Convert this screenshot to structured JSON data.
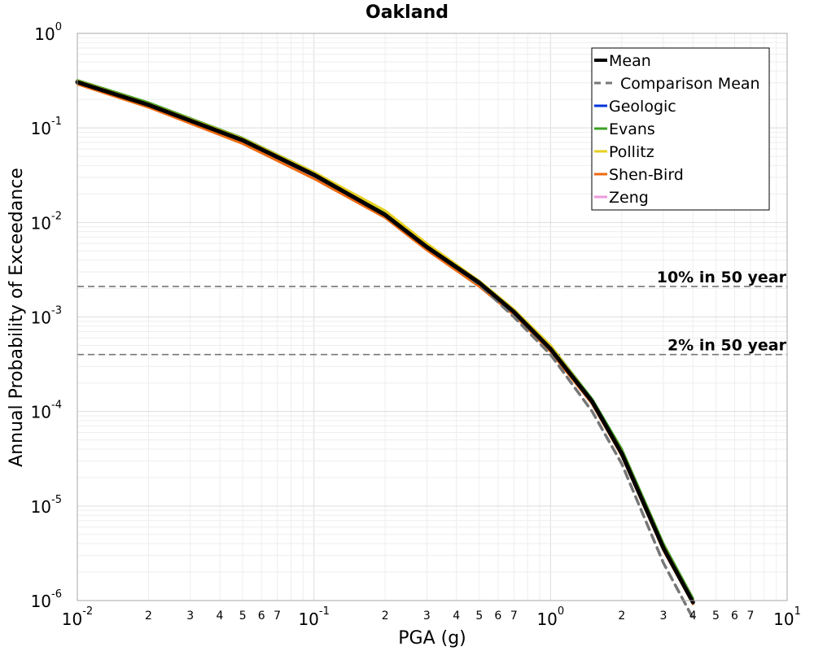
{
  "chart_data": {
    "type": "line",
    "title": "Oakland",
    "xlabel": "PGA (g)",
    "ylabel": "Annual Probability of Exceedance",
    "xscale": "log",
    "yscale": "log",
    "xlim": [
      0.01,
      10
    ],
    "ylim": [
      1e-06,
      1
    ],
    "grid": true,
    "legend_position": "top-right",
    "x_decade_labels": [
      {
        "value": 0.01,
        "base": "10",
        "exp": "-2"
      },
      {
        "value": 0.1,
        "base": "10",
        "exp": "-1"
      },
      {
        "value": 1,
        "base": "10",
        "exp": "0"
      },
      {
        "value": 10,
        "base": "10",
        "exp": "1"
      }
    ],
    "y_decade_labels": [
      {
        "value": 1,
        "base": "10",
        "exp": "0"
      },
      {
        "value": 0.1,
        "base": "10",
        "exp": "-1"
      },
      {
        "value": 0.01,
        "base": "10",
        "exp": "-2"
      },
      {
        "value": 0.001,
        "base": "10",
        "exp": "-3"
      },
      {
        "value": 0.0001,
        "base": "10",
        "exp": "-4"
      },
      {
        "value": 1e-05,
        "base": "10",
        "exp": "-5"
      },
      {
        "value": 1e-06,
        "base": "10",
        "exp": "-6"
      }
    ],
    "x_minor_labels": [
      "2",
      "3",
      "4",
      "5",
      "6",
      "7"
    ],
    "reference_lines": [
      {
        "label": "10% in 50 year",
        "y": 0.0021
      },
      {
        "label": "2% in 50 year",
        "y": 0.0004
      }
    ],
    "series": [
      {
        "name": "Geologic",
        "color": "#0033dd",
        "dash": "",
        "x": [
          0.01,
          0.02,
          0.05,
          0.1,
          0.2,
          0.3,
          0.5,
          0.7,
          1.0,
          1.5,
          2.0,
          3.0,
          4.0
        ],
        "y": [
          0.3,
          0.17,
          0.072,
          0.031,
          0.0115,
          0.0053,
          0.0022,
          0.0011,
          0.00045,
          0.000125,
          3.5e-05,
          3.5e-06,
          9.5e-07
        ]
      },
      {
        "name": "Evans",
        "color": "#3aa022",
        "dash": "",
        "x": [
          0.01,
          0.02,
          0.05,
          0.1,
          0.2,
          0.3,
          0.5,
          0.7,
          1.0,
          1.5,
          2.0,
          3.0,
          4.0
        ],
        "y": [
          0.32,
          0.185,
          0.078,
          0.034,
          0.013,
          0.0058,
          0.0024,
          0.0012,
          0.0005,
          0.000135,
          4e-05,
          4e-06,
          1.05e-06
        ]
      },
      {
        "name": "Pollitz",
        "color": "#e8d020",
        "dash": "",
        "x": [
          0.01,
          0.02,
          0.05,
          0.1,
          0.2,
          0.3,
          0.5,
          0.7,
          1.0,
          1.5,
          2.0,
          3.0,
          4.0
        ],
        "y": [
          0.315,
          0.18,
          0.077,
          0.034,
          0.0133,
          0.006,
          0.0024,
          0.0012,
          0.0005,
          0.00013,
          3.8e-05,
          3.8e-06,
          1e-06
        ]
      },
      {
        "name": "Shen-Bird",
        "color": "#ee6a10",
        "dash": "",
        "x": [
          0.01,
          0.02,
          0.05,
          0.1,
          0.2,
          0.3,
          0.5,
          0.7,
          1.0,
          1.5,
          2.0,
          3.0,
          4.0
        ],
        "y": [
          0.29,
          0.165,
          0.068,
          0.029,
          0.0112,
          0.0051,
          0.0021,
          0.00105,
          0.00043,
          0.00012,
          3.4e-05,
          3.4e-06,
          9.2e-07
        ]
      },
      {
        "name": "Zeng",
        "color": "#ee99dd",
        "dash": "",
        "x": [
          0.01,
          0.02,
          0.05,
          0.1,
          0.2,
          0.3,
          0.5,
          0.7,
          1.0,
          1.5,
          2.0,
          3.0,
          4.0
        ],
        "y": [
          0.305,
          0.172,
          0.073,
          0.032,
          0.012,
          0.0055,
          0.0023,
          0.00113,
          0.00046,
          0.000127,
          3.6e-05,
          3.6e-06,
          9.6e-07
        ]
      },
      {
        "name": "Comparison Mean",
        "color": "#777777",
        "dash": "10,7",
        "x": [
          0.01,
          0.02,
          0.05,
          0.1,
          0.2,
          0.3,
          0.5,
          0.7,
          1.0,
          1.5,
          2.0,
          3.0,
          4.0
        ],
        "y": [
          0.305,
          0.175,
          0.074,
          0.032,
          0.012,
          0.0055,
          0.0022,
          0.001,
          0.0004,
          0.0001,
          2.8e-05,
          2.5e-06,
          6.5e-07
        ]
      },
      {
        "name": "Mean",
        "color": "#000000",
        "dash": "",
        "x": [
          0.01,
          0.02,
          0.05,
          0.1,
          0.2,
          0.3,
          0.5,
          0.7,
          1.0,
          1.5,
          2.0,
          3.0,
          4.0
        ],
        "y": [
          0.305,
          0.175,
          0.074,
          0.032,
          0.012,
          0.0055,
          0.0023,
          0.00113,
          0.00046,
          0.000127,
          3.6e-05,
          3.6e-06,
          9.6e-07
        ]
      }
    ],
    "legend": [
      {
        "name": "Mean",
        "color": "#000000",
        "dash": ""
      },
      {
        "name": "Comparison Mean",
        "color": "#777777",
        "dash": "10,7"
      },
      {
        "name": "Geologic",
        "color": "#0033dd",
        "dash": ""
      },
      {
        "name": "Evans",
        "color": "#3aa022",
        "dash": ""
      },
      {
        "name": "Pollitz",
        "color": "#e8d020",
        "dash": ""
      },
      {
        "name": "Shen-Bird",
        "color": "#ee6a10",
        "dash": ""
      },
      {
        "name": "Zeng",
        "color": "#ee99dd",
        "dash": ""
      }
    ]
  }
}
